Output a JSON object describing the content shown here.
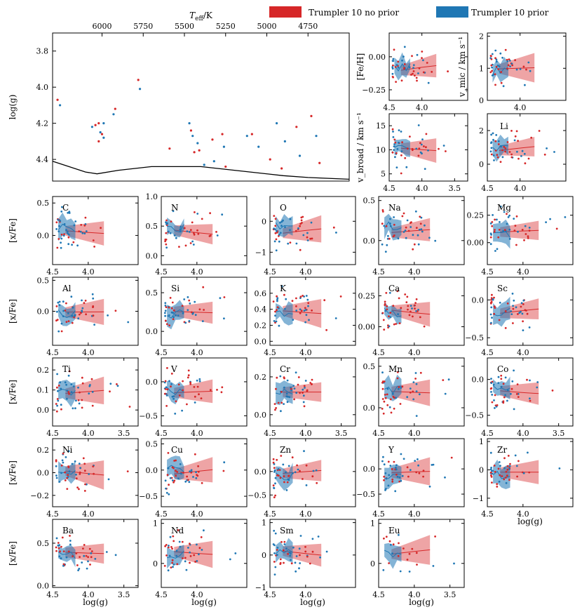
{
  "colors": {
    "no_prior": "#d62728",
    "prior": "#1f77b4"
  },
  "legend": [
    {
      "label": "Trumpler 10 no prior",
      "color": "#d62728"
    },
    {
      "label": "Trumpler 10 prior",
      "color": "#1f77b4"
    }
  ],
  "chart_data": {
    "type": "scatter",
    "hr": {
      "top_xlabel": "T_eff / K",
      "top_ticks": [
        "6000",
        "5750",
        "5500",
        "5250",
        "5000",
        "4750"
      ],
      "top_xlim": [
        6300,
        4500
      ],
      "ylabel": "log(g)",
      "ylim": [
        4.52,
        3.7
      ],
      "yticks": [
        "3.8",
        "4.0",
        "4.2",
        "4.4"
      ],
      "isochrone": [
        [
          6300,
          4.41
        ],
        [
          6100,
          4.47
        ],
        [
          6030,
          4.48
        ],
        [
          5900,
          4.46
        ],
        [
          5700,
          4.44
        ],
        [
          5400,
          4.44
        ],
        [
          5100,
          4.47
        ],
        [
          4900,
          4.49
        ],
        [
          4750,
          4.5
        ],
        [
          4500,
          4.51
        ]
      ]
    },
    "top_panels": [
      {
        "label": "[Fe/H]",
        "ylabel": "[Fe/H]",
        "ylim": [
          -0.33,
          0.18
        ],
        "yticks": [
          "0.00",
          "−0.25"
        ],
        "ytick_values": [
          0,
          -0.25
        ],
        "xticks": [
          "4.5",
          "4.0"
        ]
      },
      {
        "label": "v_mic",
        "ylabel": "v_mic / km s⁻¹",
        "ylim": [
          0,
          2.1
        ],
        "yticks": [
          "0",
          "1",
          "2"
        ],
        "ytick_values": [
          0,
          1,
          2
        ],
        "xticks": [
          "4.0"
        ]
      },
      {
        "label": "v_broad",
        "ylabel": "v_broad / km s⁻¹",
        "ylim": [
          3.5,
          17.5
        ],
        "yticks": [
          "5",
          "10",
          "15"
        ],
        "ytick_values": [
          5,
          10,
          15
        ],
        "xticks": [
          "4.5",
          "4.0",
          "3.5"
        ]
      },
      {
        "label": "Li",
        "ylabel": "",
        "ylim": [
          -1,
          3
        ],
        "yticks": [
          "0",
          "2"
        ],
        "ytick_values": [
          0,
          2
        ],
        "xticks": [
          "4.5",
          "4.0"
        ]
      }
    ],
    "x_axis_label": "log(g)",
    "y_axis_label": "[x/Fe]",
    "elements": [
      {
        "name": "C",
        "ylim": [
          -0.45,
          0.6
        ],
        "yticks": [
          "0.0",
          "0.5"
        ],
        "ytick_values": [
          0,
          0.5
        ],
        "xticks": [
          "4.5",
          "4.0"
        ]
      },
      {
        "name": "N",
        "ylim": [
          -0.15,
          1.0
        ],
        "yticks": [
          "0.0",
          "0.5",
          "1.0"
        ],
        "ytick_values": [
          0,
          0.5,
          1
        ],
        "xticks": [
          "4.5",
          "4.0"
        ]
      },
      {
        "name": "O",
        "ylim": [
          -1.4,
          0.8
        ],
        "yticks": [
          "0",
          "−1"
        ],
        "ytick_values": [
          0,
          -1
        ],
        "xticks": [
          "4.5",
          "4.0"
        ]
      },
      {
        "name": "Na",
        "ylim": [
          -0.3,
          0.55
        ],
        "yticks": [
          "0.5",
          "0.0"
        ],
        "ytick_values": [
          0.5,
          0
        ],
        "xticks": [
          "4.5",
          "4.0"
        ]
      },
      {
        "name": "Mg",
        "ylim": [
          -0.2,
          0.42
        ],
        "yticks": [
          "0.25",
          "0.00"
        ],
        "ytick_values": [
          0.25,
          0
        ],
        "xticks": [
          "4.5",
          "4.0"
        ]
      },
      {
        "name": "Al",
        "ylim": [
          -0.55,
          0.55
        ],
        "yticks": [
          "0.5",
          "0.0"
        ],
        "ytick_values": [
          0.5,
          0
        ],
        "xticks": [
          "4.5",
          "4.0"
        ]
      },
      {
        "name": "Si",
        "ylim": [
          -0.18,
          0.7
        ],
        "yticks": [
          "0.5",
          "0.0"
        ],
        "ytick_values": [
          0.5,
          0
        ],
        "xticks": [
          "4.5",
          "4.0"
        ]
      },
      {
        "name": "K",
        "ylim": [
          -0.05,
          0.8
        ],
        "yticks": [
          "0.0",
          "0.2",
          "0.4",
          "0.6"
        ],
        "ytick_values": [
          0,
          0.2,
          0.4,
          0.6
        ],
        "xticks": [
          "4.5",
          "4.0"
        ]
      },
      {
        "name": "Ca",
        "ylim": [
          -0.15,
          0.4
        ],
        "yticks": [
          "0.25",
          "0.00"
        ],
        "ytick_values": [
          0.25,
          0
        ],
        "xticks": [
          "4.5",
          "4.0"
        ]
      },
      {
        "name": "Sc",
        "ylim": [
          -0.6,
          0.3
        ],
        "yticks": [
          "0.0",
          "−0.5"
        ],
        "ytick_values": [
          0,
          -0.5
        ],
        "xticks": [
          "4.5",
          "4.0"
        ]
      },
      {
        "name": "Ti",
        "ylim": [
          -0.08,
          0.26
        ],
        "yticks": [
          "0.0",
          "0.1",
          "0.2"
        ],
        "ytick_values": [
          0,
          0.1,
          0.2
        ],
        "xticks": [
          "4.5",
          "4.0",
          "3.5"
        ]
      },
      {
        "name": "V",
        "ylim": [
          -0.65,
          0.35
        ],
        "yticks": [
          "0.0",
          "−0.5"
        ],
        "ytick_values": [
          0,
          -0.5
        ],
        "xticks": [
          "4.5",
          "4.0"
        ]
      },
      {
        "name": "Cr",
        "ylim": [
          -0.06,
          0.3
        ],
        "yticks": [
          "0.0",
          "0.2"
        ],
        "ytick_values": [
          0,
          0.2
        ],
        "xticks": [
          "4.5",
          "4.0",
          "3.5"
        ]
      },
      {
        "name": "Mn",
        "ylim": [
          -0.22,
          0.6
        ],
        "yticks": [
          "0.5",
          "0.0"
        ],
        "ytick_values": [
          0.5,
          0
        ],
        "xticks": [
          "4.5",
          "4.0"
        ]
      },
      {
        "name": "Co",
        "ylim": [
          -0.65,
          0.3
        ],
        "yticks": [
          "0.0",
          "−0.5"
        ],
        "ytick_values": [
          0,
          -0.5
        ],
        "xticks": [
          "4.5",
          "4.0",
          "3.5"
        ]
      },
      {
        "name": "Ni",
        "ylim": [
          -0.3,
          0.3
        ],
        "yticks": [
          "0.2",
          "0.0",
          "−0.2"
        ],
        "ytick_values": [
          0.2,
          0,
          -0.2
        ],
        "xticks": [
          "4.5",
          "4.0"
        ]
      },
      {
        "name": "Cu",
        "ylim": [
          -0.7,
          0.6
        ],
        "yticks": [
          "0.5",
          "0.0",
          "−0.5"
        ],
        "ytick_values": [
          0.5,
          0,
          -0.5
        ],
        "xticks": [
          "4.5",
          "4.0"
        ]
      },
      {
        "name": "Zn",
        "ylim": [
          -0.75,
          0.7
        ],
        "yticks": [
          "0.0",
          "−0.5"
        ],
        "ytick_values": [
          0,
          -0.5
        ],
        "xticks": [
          "4.5",
          "4.0"
        ]
      },
      {
        "name": "Y",
        "ylim": [
          -0.75,
          0.6
        ],
        "yticks": [
          "0.0",
          "−0.5"
        ],
        "ytick_values": [
          0,
          -0.5
        ],
        "xticks": [
          "4.5",
          "4.0"
        ]
      },
      {
        "name": "Zr",
        "ylim": [
          -1.3,
          1.1
        ],
        "yticks": [
          "1",
          "0",
          "−1"
        ],
        "ytick_values": [
          1,
          0,
          -1
        ],
        "xticks": [
          "4.5",
          "4.0"
        ]
      },
      {
        "name": "Ba",
        "ylim": [
          -0.02,
          0.78
        ],
        "yticks": [
          "0.5",
          "0.0"
        ],
        "ytick_values": [
          0.5,
          0
        ],
        "xticks": [
          "4.5",
          "4.0",
          "3.5"
        ]
      },
      {
        "name": "Nd",
        "ylim": [
          -0.6,
          1.1
        ],
        "yticks": [
          "1",
          "0"
        ],
        "ytick_values": [
          1,
          0
        ],
        "xticks": [
          "4.5",
          "4.0"
        ]
      },
      {
        "name": "Sm",
        "ylim": [
          -1.0,
          1.1
        ],
        "yticks": [
          "1",
          "0",
          "−1"
        ],
        "ytick_values": [
          1,
          0,
          -1
        ],
        "xticks": [
          "4.5",
          "4.0"
        ]
      },
      {
        "name": "Eu",
        "ylim": [
          -0.6,
          1.1
        ],
        "yticks": [
          "1",
          "0"
        ],
        "ytick_values": [
          1,
          0
        ],
        "xticks": [
          "4.5",
          "4.0",
          "3.5"
        ]
      }
    ]
  }
}
